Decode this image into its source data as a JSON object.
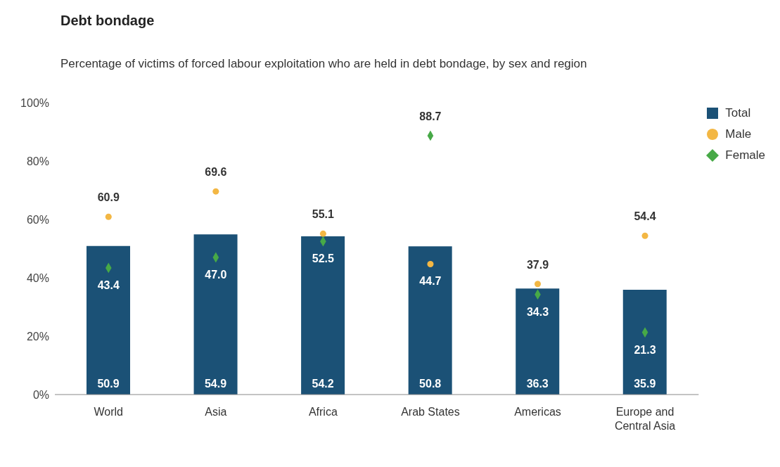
{
  "chart_data": {
    "type": "bar",
    "title": "Debt bondage",
    "subtitle": "Percentage of victims of forced labour exploitation who are held in debt bondage, by sex and region",
    "categories": [
      "World",
      "Asia",
      "Africa",
      "Arab States",
      "Americas",
      "Europe and Central Asia"
    ],
    "series": [
      {
        "name": "Total",
        "color": "#1b5176",
        "values": [
          50.9,
          54.9,
          54.2,
          50.8,
          36.3,
          35.9
        ]
      },
      {
        "name": "Male",
        "type": "scatter",
        "marker": "circle",
        "color": "#f3b744",
        "values": [
          60.9,
          69.6,
          55.1,
          44.7,
          37.9,
          54.4
        ],
        "value_labels": [
          "60.9",
          "69.6",
          "55.1",
          "44.7",
          "37.9",
          "54.4"
        ]
      },
      {
        "name": "Female",
        "type": "scatter",
        "marker": "diamond",
        "color": "#47a947",
        "values": [
          43.4,
          47.0,
          52.5,
          88.7,
          34.3,
          21.3
        ],
        "value_labels": [
          "43.4",
          "47.0",
          "52.5",
          "88.7",
          "34.3",
          "21.3"
        ]
      }
    ],
    "ylim": [
      0,
      100
    ],
    "yticks": [
      {
        "value": 0,
        "label": "0%"
      },
      {
        "value": 20,
        "label": "20%"
      },
      {
        "value": 40,
        "label": "40%"
      },
      {
        "value": 60,
        "label": "60%"
      },
      {
        "value": 80,
        "label": "80%"
      },
      {
        "value": 100,
        "label": "100%"
      }
    ],
    "grid": false,
    "legend": "top right",
    "data_labels": true
  }
}
